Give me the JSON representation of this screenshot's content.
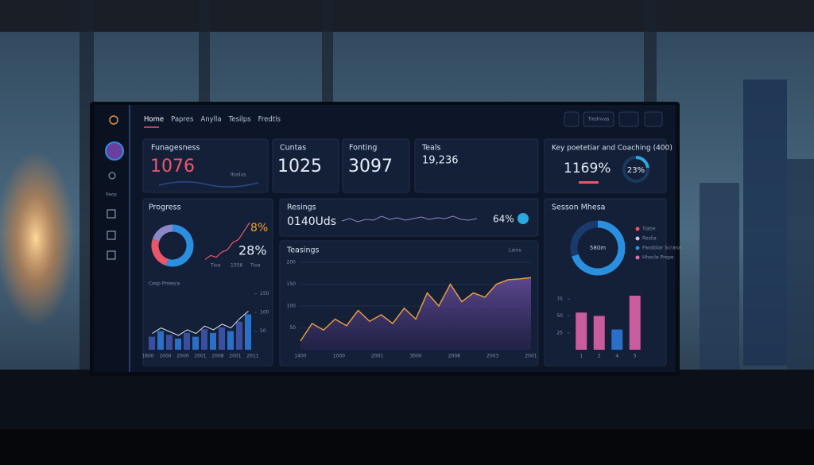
{
  "nav": {
    "items": [
      "Home",
      "Papres",
      "Anylla",
      "Tesilps",
      "Fredtls"
    ],
    "button": "Tiednvas"
  },
  "sidebar": {
    "label": "Feos"
  },
  "cards": {
    "funagesness": {
      "title": "Funagesness",
      "value": "1076",
      "caption": "Itoslus"
    },
    "cuntas": {
      "title": "Cuntas",
      "value": "1025"
    },
    "fonting": {
      "title": "Fonting",
      "value": "3097"
    },
    "teals": {
      "title": "Teals",
      "value": "19,236"
    },
    "key": {
      "title": "Key poetetiar and Coaching (400)",
      "value": "1169%",
      "ring": 23,
      "ring_label": "23%"
    }
  },
  "progress": {
    "title": "Progress",
    "donut": [
      55,
      25,
      20
    ],
    "donut_colors": [
      "#2b8fe0",
      "#e8566a",
      "#8f86c8"
    ],
    "stat1": "8%",
    "stat2": "28%",
    "trend": [
      5,
      12,
      9,
      18,
      22,
      35,
      40,
      55,
      70
    ],
    "trend_labels": [
      "Tiva",
      "1356",
      "Tiva"
    ],
    "bar_title": "Cesp Pmesra",
    "bars": [
      35,
      50,
      40,
      30,
      45,
      35,
      55,
      45,
      60,
      50,
      75,
      95
    ],
    "bar_xlabels": [
      "1800",
      "1000",
      "2000",
      "2001",
      "2008",
      "2001",
      "2011"
    ],
    "ylim": [
      0,
      160
    ],
    "yticks": [
      50,
      100,
      150
    ]
  },
  "resings": {
    "title": "Resings",
    "value": "0140Uds",
    "spark": [
      6,
      9,
      5,
      8,
      7,
      12,
      8,
      10,
      7,
      9,
      11,
      8,
      10,
      9,
      12,
      8,
      7,
      9
    ],
    "percent": "64%"
  },
  "teasings": {
    "title": "Teasings",
    "link": "Lains",
    "values": [
      20,
      60,
      45,
      70,
      55,
      90,
      65,
      80,
      60,
      95,
      70,
      130,
      100,
      150,
      110,
      130,
      120,
      150,
      160,
      162,
      165
    ],
    "xlabels": [
      "1400",
      "1000",
      "2001",
      "3000",
      "2008",
      "2003",
      "2001"
    ],
    "ylim": [
      0,
      200
    ],
    "yticks": [
      50,
      100,
      150,
      200
    ]
  },
  "session": {
    "title": "Sesson Mhesa",
    "center": "580m",
    "donut": [
      70,
      30
    ],
    "donut_colors": [
      "#2b8fe0",
      "#1a3a6e"
    ],
    "legend": [
      "Tiatie",
      "Reslia",
      "Pandolar Scrana",
      "Hhecle Prepe"
    ],
    "legend_colors": [
      "#e8566a",
      "#c9c3e6",
      "#2b8fe0",
      "#d86fb2"
    ],
    "bars": [
      55,
      50,
      30,
      80
    ],
    "bar_colors": [
      "#c85c9c",
      "#c85c9c",
      "#2a6fc8",
      "#c85c9c"
    ],
    "bar_xlabels": [
      "1",
      "2",
      "4",
      "5"
    ],
    "ylim": [
      0,
      100
    ],
    "yticks": [
      25,
      50,
      75
    ]
  }
}
